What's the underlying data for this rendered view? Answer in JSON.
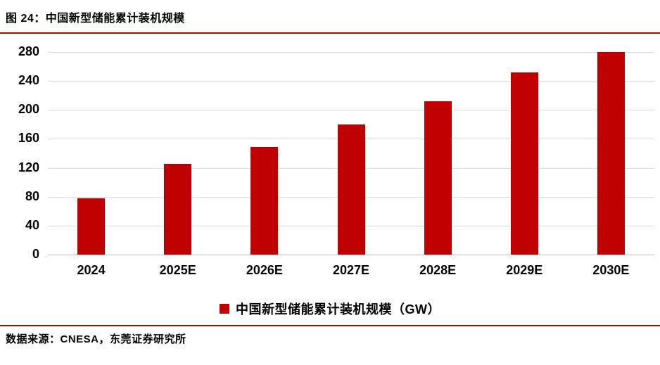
{
  "figure": {
    "title": "图 24：中国新型储能累计装机规模",
    "source": "数据来源：CNESA，东莞证券研究所"
  },
  "legend": {
    "label": "中国新型储能累计装机规模（GW）"
  },
  "colors": {
    "bar": "#c00000",
    "rule": "#c00000",
    "grid": "#dcdcdc",
    "zero_axis": "#bdbdbd",
    "text": "#000000",
    "background": "#ffffff"
  },
  "chart_data": {
    "type": "bar",
    "title": "中国新型储能累计装机规模",
    "unit": "GW",
    "categories": [
      "2024",
      "2025E",
      "2026E",
      "2027E",
      "2028E",
      "2029E",
      "2030E"
    ],
    "values": [
      78,
      125,
      149,
      180,
      212,
      252,
      280
    ],
    "xlabel": "",
    "ylabel": "",
    "ylim": [
      0,
      280
    ],
    "yticks": [
      0,
      40,
      80,
      120,
      160,
      200,
      240,
      280
    ],
    "grid": true,
    "legend_position": "bottom",
    "legend_label": "中国新型储能累计装机规模（GW）",
    "bar_color": "#c00000"
  }
}
